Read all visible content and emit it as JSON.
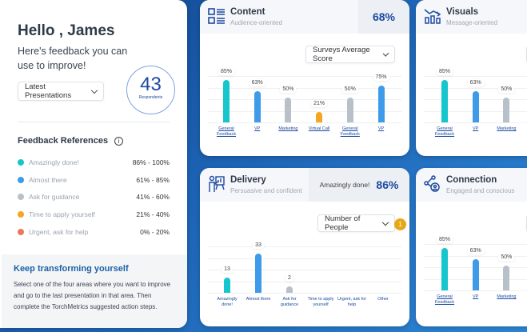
{
  "greeting": "Hello , James",
  "subtitle": "Here's feedback you can use to improve!",
  "presentation_select": "Latest Presentations",
  "respondents": {
    "count": "43",
    "label": "Respondents"
  },
  "feedback_refs": {
    "title": "Feedback References",
    "items": [
      {
        "label": "Amazingly done!",
        "range": "86% - 100%",
        "color": "#17c5cc"
      },
      {
        "label": "Almost there",
        "range": "61% - 85%",
        "color": "#3d9be9"
      },
      {
        "label": "Ask for guidance",
        "range": "41% - 60%",
        "color": "#b8c0c9"
      },
      {
        "label": "Time to apply yourself",
        "range": "21% - 40%",
        "color": "#f5a623"
      },
      {
        "label": "Urgent, ask for help",
        "range": "0% - 20%",
        "color": "#ee7560"
      }
    ]
  },
  "keep": {
    "title": "Keep transforming yourself",
    "text": "Select one of the four areas where you want to improve and go to the last presentation in that area. Then complete the TorchMetrics suggested action steps."
  },
  "cards": {
    "content": {
      "title": "Content",
      "subtitle": "Audience-oriented",
      "score": "68%",
      "select": "Surveys Average Score"
    },
    "delivery": {
      "title": "Delivery",
      "subtitle": "Persuasive and confident",
      "score_label": "Amazingly done!",
      "score": "86%",
      "select": "Number of People",
      "badge": "1"
    },
    "visuals": {
      "title": "Visuals",
      "subtitle": "Message-oriented"
    },
    "connection": {
      "title": "Connection",
      "subtitle": "Engaged and conscious"
    }
  },
  "chart_data": [
    {
      "type": "bar",
      "card": "content",
      "unit": "%",
      "categories": [
        "General Feedback",
        "VP",
        "Marketing",
        "Virtual Call",
        "General Feedback",
        "VP"
      ],
      "values": [
        85,
        63,
        50,
        21,
        50,
        75
      ],
      "labels": [
        "85%",
        "63%",
        "50%",
        "21%",
        "50%",
        "75%"
      ],
      "colors": [
        "#17c5cc",
        "#3d9be9",
        "#b8c0c9",
        "#f5a623",
        "#b8c0c9",
        "#3d9be9"
      ],
      "ylim": [
        0,
        100
      ]
    },
    {
      "type": "bar",
      "card": "delivery",
      "categories": [
        "Amazingly done!",
        "Almost there",
        "Ask for guidance",
        "Time to apply yourself",
        "Urgent, ask for help",
        "Other"
      ],
      "values": [
        13,
        33,
        2,
        null,
        null,
        null
      ],
      "labels": [
        "13",
        "33",
        "2",
        "",
        "",
        ""
      ],
      "colors": [
        "#17c5cc",
        "#3d9be9",
        "#b8c0c9",
        "#f5a623",
        "#ee7560",
        "#b8c0c9"
      ],
      "ylim": [
        0,
        43
      ]
    },
    {
      "type": "bar",
      "card": "visuals",
      "categories": [
        "General Feedback",
        "VP",
        "Marketing"
      ],
      "values": [
        85,
        63,
        50
      ],
      "labels": [
        "85%",
        "63%",
        "50%"
      ],
      "colors": [
        "#17c5cc",
        "#3d9be9",
        "#b8c0c9"
      ],
      "ylim": [
        0,
        100
      ]
    },
    {
      "type": "bar",
      "card": "connection",
      "categories": [
        "General Feedback",
        "VP",
        "Marketing"
      ],
      "values": [
        85,
        63,
        50
      ],
      "labels": [
        "85%",
        "63%",
        "50%"
      ],
      "colors": [
        "#17c5cc",
        "#3d9be9",
        "#b8c0c9"
      ],
      "ylim": [
        0,
        100
      ]
    }
  ]
}
